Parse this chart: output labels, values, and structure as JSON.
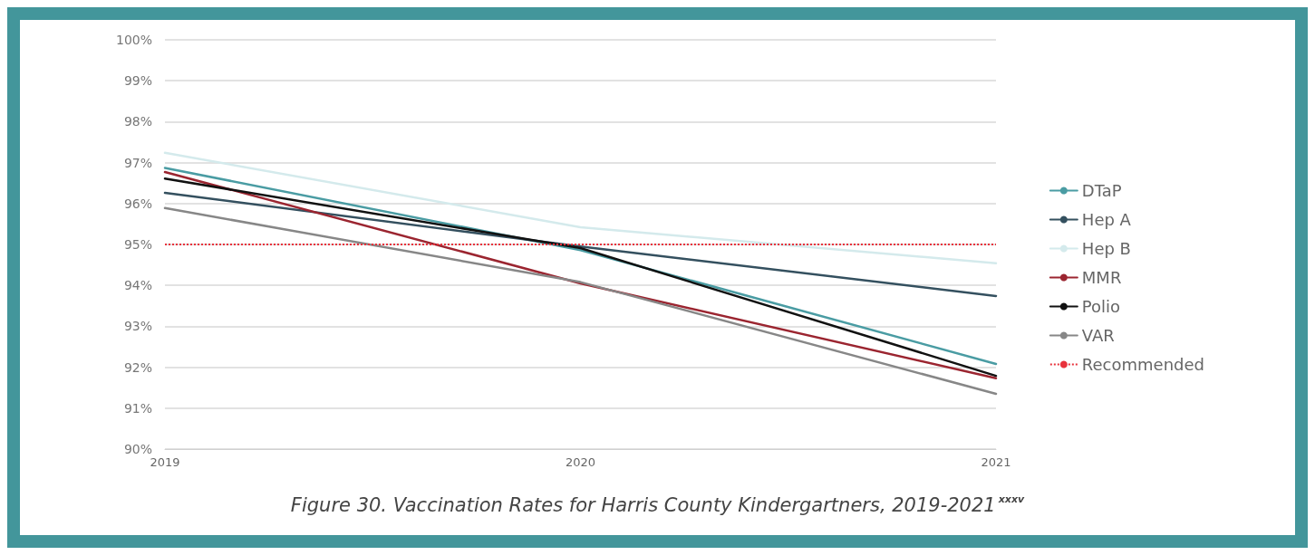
{
  "chart_data": {
    "type": "line",
    "title": "Figure 30. Vaccination Rates for Harris County Kindergartners, 2019-2021$^{xxxv}$",
    "categories": [
      "2019",
      "2020",
      "2021"
    ],
    "series": [
      {
        "name": "DTaP",
        "color": "#4a9ca3",
        "values": [
          96.87,
          94.86,
          92.08
        ]
      },
      {
        "name": "Hep A",
        "color": "#34505f",
        "values": [
          96.26,
          94.95,
          93.74
        ]
      },
      {
        "name": "Hep B",
        "color": "#d4eaec",
        "values": [
          97.24,
          95.42,
          94.54
        ]
      },
      {
        "name": "MMR",
        "color": "#9b2530",
        "values": [
          96.77,
          94.05,
          91.73
        ]
      },
      {
        "name": "Polio",
        "color": "#111111",
        "values": [
          96.61,
          94.91,
          91.79
        ]
      },
      {
        "name": "VAR",
        "color": "#878787",
        "values": [
          95.89,
          94.08,
          91.35
        ]
      }
    ],
    "ref_lines": [
      {
        "axis": "y",
        "value": 95,
        "label": "Recommended",
        "color": "#e8323c",
        "line_style": "dotted"
      }
    ],
    "ylim": [
      90,
      100
    ],
    "yticks": [
      {
        "value": 90,
        "label": "90%"
      },
      {
        "value": 91,
        "label": "91%"
      },
      {
        "value": 92,
        "label": "92%"
      },
      {
        "value": 93,
        "label": "93%"
      },
      {
        "value": 94,
        "label": "94%"
      },
      {
        "value": 95,
        "label": "95%"
      },
      {
        "value": 96,
        "label": "96%"
      },
      {
        "value": 97,
        "label": "97%"
      },
      {
        "value": 98,
        "label": "98%"
      },
      {
        "value": 99,
        "label": "99%"
      },
      {
        "value": 100,
        "label": "100%"
      }
    ],
    "grid": "y",
    "legend": "right",
    "marker": "none",
    "line_style": "solid"
  }
}
